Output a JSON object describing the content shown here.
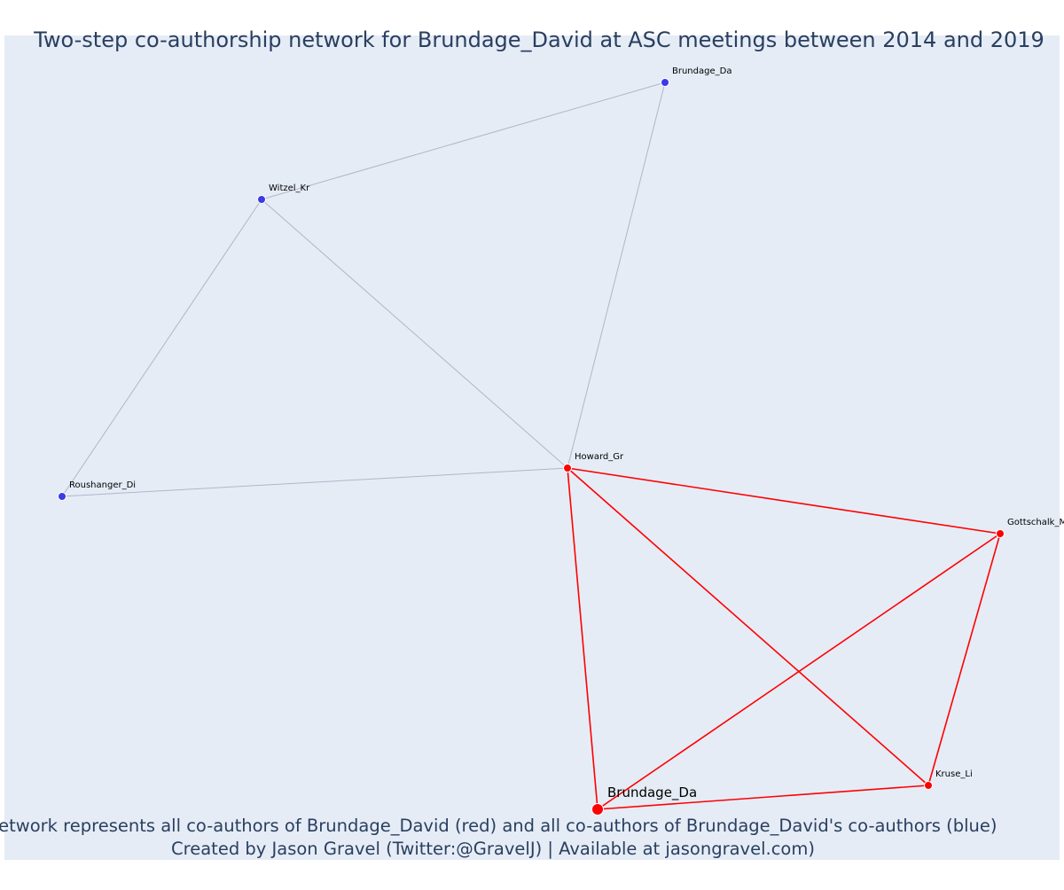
{
  "title": "Two-step co-authorship network for Brundage_David at ASC meetings between 2014 and 2019",
  "caption": {
    "line1": "Network represents all co-authors of Brundage_David (red) and all co-authors of Brundage_David's co-authors (blue)",
    "line2": "Created by Jason Gravel (Twitter:@GravelJ) | Available at jasongravel.com)"
  },
  "colors": {
    "plot_background": "#e5ecf6",
    "title_text": "#2a3f5f",
    "first_step": "#ff0000",
    "second_step": "#3a3ae8",
    "second_step_edge": "#b4b4c8",
    "label_text": "#000000"
  },
  "network": {
    "nodes": [
      {
        "id": "n1",
        "label": "Brundage_Da",
        "group": "second_step",
        "focal": false
      },
      {
        "id": "n2",
        "label": "Witzel_Kr",
        "group": "second_step",
        "focal": false
      },
      {
        "id": "n3",
        "label": "Roushanger_Di",
        "group": "second_step",
        "focal": false
      },
      {
        "id": "n4",
        "label": "Howard_Gr",
        "group": "first_step",
        "focal": false
      },
      {
        "id": "n5",
        "label": "Gottschalk_M",
        "group": "first_step",
        "focal": false
      },
      {
        "id": "n6",
        "label": "Kruse_Li",
        "group": "first_step",
        "focal": false
      },
      {
        "id": "n7",
        "label": "Brundage_Da",
        "group": "first_step",
        "focal": true
      }
    ],
    "edges": [
      {
        "source": "n2",
        "target": "n1",
        "group": "second_step"
      },
      {
        "source": "n1",
        "target": "n4",
        "group": "second_step"
      },
      {
        "source": "n2",
        "target": "n4",
        "group": "second_step"
      },
      {
        "source": "n2",
        "target": "n3",
        "group": "second_step"
      },
      {
        "source": "n3",
        "target": "n4",
        "group": "second_step"
      },
      {
        "source": "n4",
        "target": "n5",
        "group": "first_step"
      },
      {
        "source": "n4",
        "target": "n7",
        "group": "first_step"
      },
      {
        "source": "n4",
        "target": "n6",
        "group": "first_step"
      },
      {
        "source": "n5",
        "target": "n7",
        "group": "first_step"
      },
      {
        "source": "n5",
        "target": "n6",
        "group": "first_step"
      },
      {
        "source": "n7",
        "target": "n6",
        "group": "first_step"
      }
    ]
  }
}
